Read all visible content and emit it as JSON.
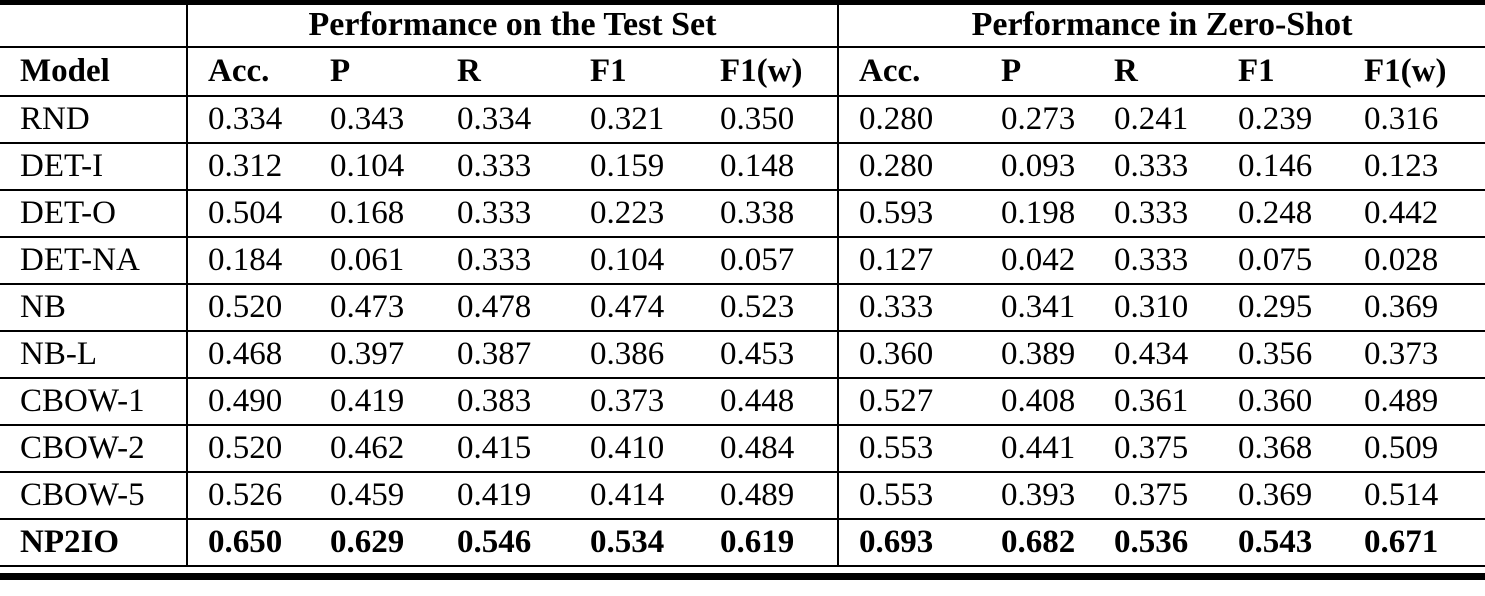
{
  "table": {
    "group_headers": [
      {
        "label": "Performance on the Test Set"
      },
      {
        "label": "Performance in Zero-Shot"
      }
    ],
    "model_column_header": "Model",
    "metric_columns": [
      "Acc.",
      "P",
      "R",
      "F1",
      "F1(w)"
    ],
    "rows": [
      {
        "model": "RND",
        "bold": false,
        "test": [
          "0.334",
          "0.343",
          "0.334",
          "0.321",
          "0.350"
        ],
        "zero": [
          "0.280",
          "0.273",
          "0.241",
          "0.239",
          "0.316"
        ]
      },
      {
        "model": "DET-I",
        "bold": false,
        "test": [
          "0.312",
          "0.104",
          "0.333",
          "0.159",
          "0.148"
        ],
        "zero": [
          "0.280",
          "0.093",
          "0.333",
          "0.146",
          "0.123"
        ]
      },
      {
        "model": "DET-O",
        "bold": false,
        "test": [
          "0.504",
          "0.168",
          "0.333",
          "0.223",
          "0.338"
        ],
        "zero": [
          "0.593",
          "0.198",
          "0.333",
          "0.248",
          "0.442"
        ]
      },
      {
        "model": "DET-NA",
        "bold": false,
        "test": [
          "0.184",
          "0.061",
          "0.333",
          "0.104",
          "0.057"
        ],
        "zero": [
          "0.127",
          "0.042",
          "0.333",
          "0.075",
          "0.028"
        ]
      },
      {
        "model": "NB",
        "bold": false,
        "test": [
          "0.520",
          "0.473",
          "0.478",
          "0.474",
          "0.523"
        ],
        "zero": [
          "0.333",
          "0.341",
          "0.310",
          "0.295",
          "0.369"
        ]
      },
      {
        "model": "NB-L",
        "bold": false,
        "test": [
          "0.468",
          "0.397",
          "0.387",
          "0.386",
          "0.453"
        ],
        "zero": [
          "0.360",
          "0.389",
          "0.434",
          "0.356",
          "0.373"
        ]
      },
      {
        "model": "CBOW-1",
        "bold": false,
        "test": [
          "0.490",
          "0.419",
          "0.383",
          "0.373",
          "0.448"
        ],
        "zero": [
          "0.527",
          "0.408",
          "0.361",
          "0.360",
          "0.489"
        ]
      },
      {
        "model": "CBOW-2",
        "bold": false,
        "test": [
          "0.520",
          "0.462",
          "0.415",
          "0.410",
          "0.484"
        ],
        "zero": [
          "0.553",
          "0.441",
          "0.375",
          "0.368",
          "0.509"
        ]
      },
      {
        "model": "CBOW-5",
        "bold": false,
        "test": [
          "0.526",
          "0.459",
          "0.419",
          "0.414",
          "0.489"
        ],
        "zero": [
          "0.553",
          "0.393",
          "0.375",
          "0.369",
          "0.514"
        ]
      },
      {
        "model": "NP2IO",
        "bold": true,
        "test": [
          "0.650",
          "0.629",
          "0.546",
          "0.534",
          "0.619"
        ],
        "zero": [
          "0.693",
          "0.682",
          "0.536",
          "0.543",
          "0.671"
        ]
      }
    ]
  }
}
